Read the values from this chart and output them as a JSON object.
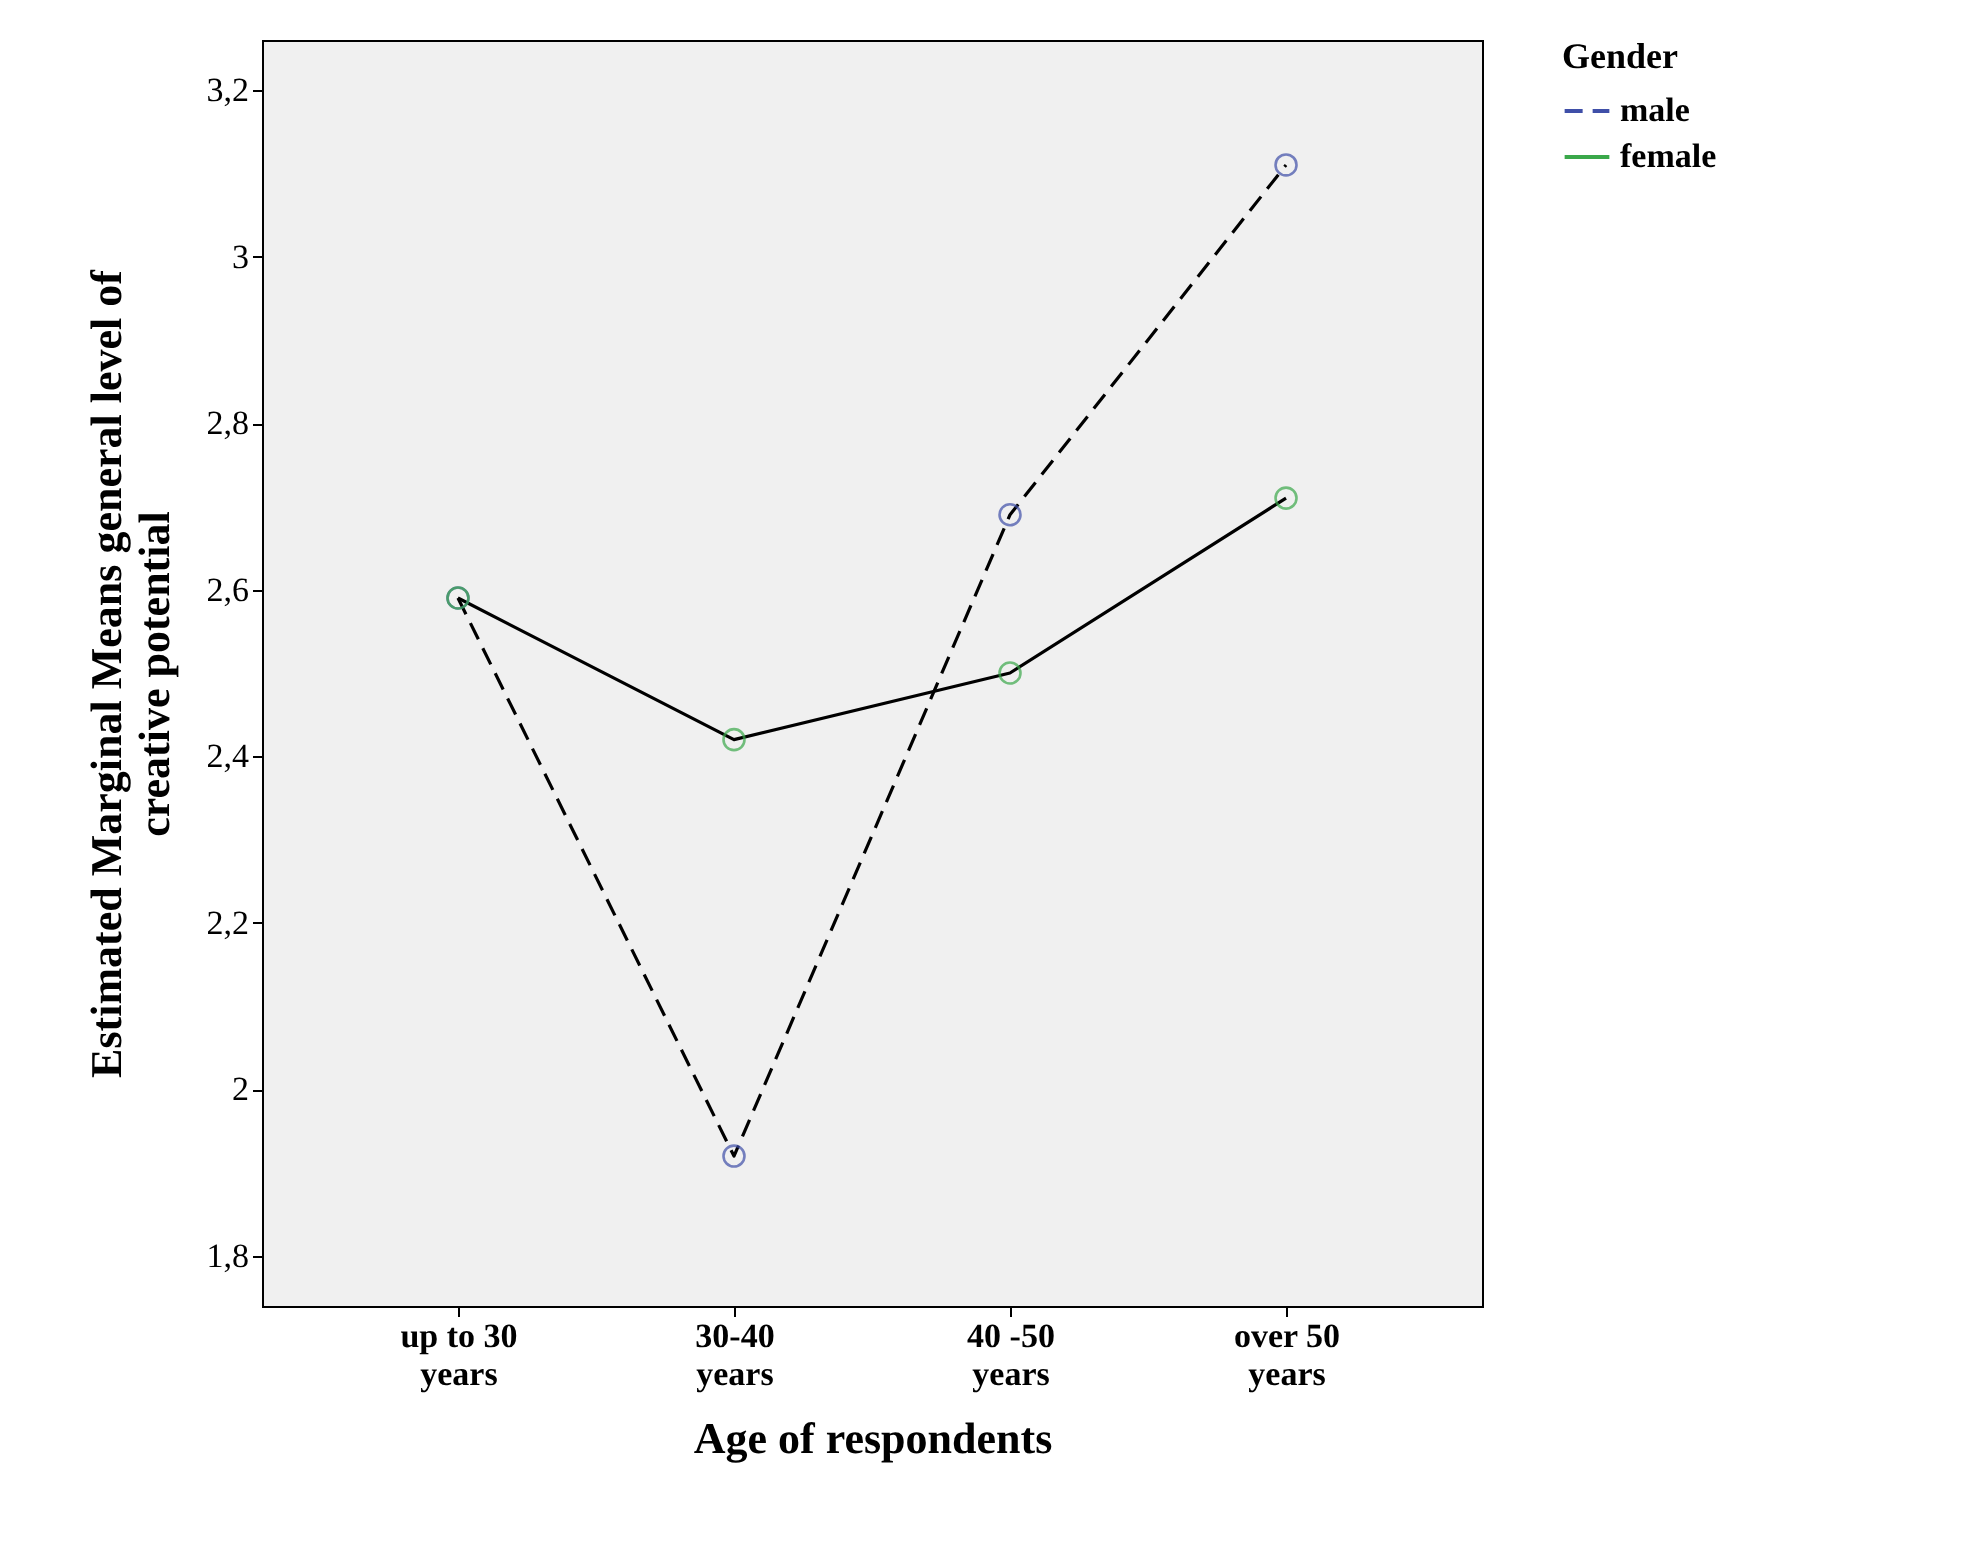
{
  "chart_data": {
    "type": "line",
    "xlabel": "Age of respondents",
    "ylabel": "Estimated Marginal Means general level of creative potential",
    "legend_title": "Gender",
    "categories": [
      "up to 30 years",
      "30-40 years",
      "40 -50 years",
      "over 50 years"
    ],
    "series": [
      {
        "name": "male",
        "color": "#3f4fa8",
        "line_style": "dashed",
        "values": [
          2.59,
          1.92,
          2.69,
          3.11
        ]
      },
      {
        "name": "female",
        "color": "#3aa84a",
        "line_style": "solid",
        "values": [
          2.59,
          2.42,
          2.5,
          2.71
        ]
      }
    ],
    "ylim": [
      1.74,
      3.26
    ],
    "yticks": [
      {
        "value": 1.8,
        "label": "1,8"
      },
      {
        "value": 2,
        "label": "2"
      },
      {
        "value": 2.2,
        "label": "2,2"
      },
      {
        "value": 2.4,
        "label": "2,4"
      },
      {
        "value": 2.6,
        "label": "2,6"
      },
      {
        "value": 2.8,
        "label": "2,8"
      },
      {
        "value": 3,
        "label": "3"
      },
      {
        "value": 3.2,
        "label": "3,2"
      }
    ],
    "grid": false,
    "legend": "top right",
    "marker": "circle"
  }
}
